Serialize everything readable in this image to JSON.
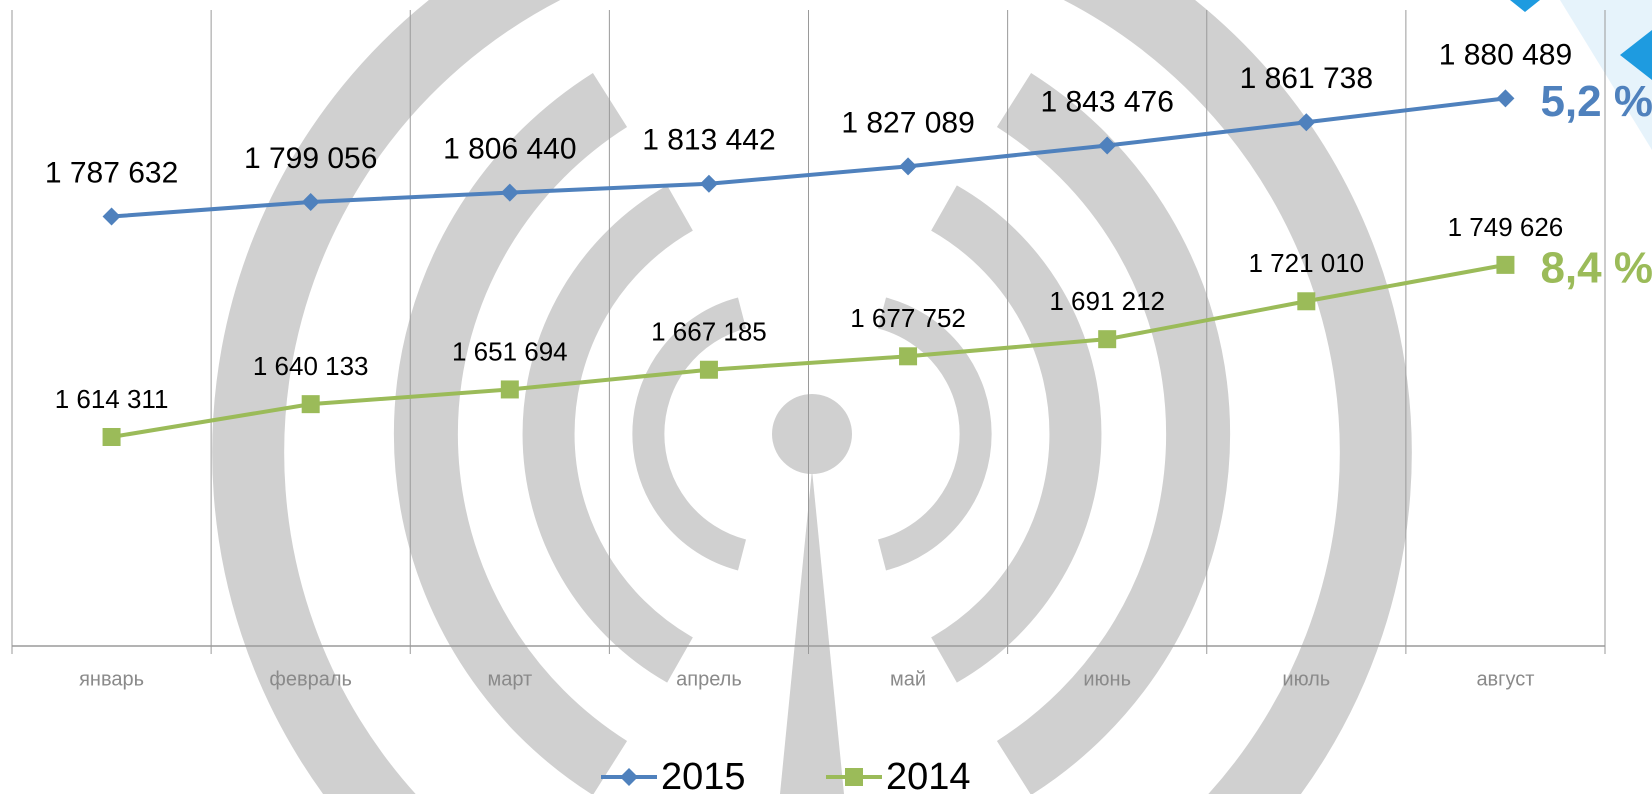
{
  "chart_data": {
    "type": "line",
    "categories": [
      "январь",
      "февраль",
      "март",
      "апрель",
      "май",
      "июнь",
      "июль",
      "август"
    ],
    "series": [
      {
        "name": "2015",
        "color": "#4f81bd",
        "marker": "diamond",
        "values": [
          1787632,
          1799056,
          1806440,
          1813442,
          1827089,
          1843476,
          1861738,
          1880489
        ],
        "value_labels": [
          "1 787 632",
          "1 799 056",
          "1 806 440",
          "1 813 442",
          "1 827 089",
          "1 843 476",
          "1 861 738",
          "1 880 489"
        ]
      },
      {
        "name": "2014",
        "color": "#9bbb59",
        "marker": "square",
        "values": [
          1614311,
          1640133,
          1651694,
          1667185,
          1677752,
          1691212,
          1721010,
          1749626
        ],
        "value_labels": [
          "1 614 311",
          "1 640 133",
          "1 651 694",
          "1 667 185",
          "1 677 752",
          "1 691 212",
          "1 721 010",
          "1 749 626"
        ]
      }
    ],
    "annotations": [
      {
        "text": "5,2 %",
        "color": "#4f81bd"
      },
      {
        "text": "8,4 %",
        "color": "#9bbb59"
      }
    ],
    "ylim": [
      1450000,
      1950000
    ],
    "grid": true,
    "legend": "bottom"
  }
}
